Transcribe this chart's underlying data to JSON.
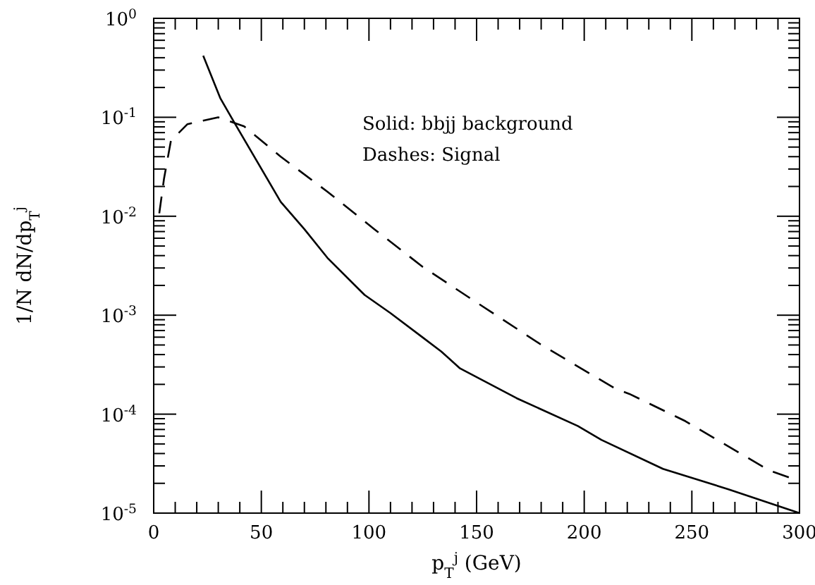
{
  "chart_data": {
    "type": "line",
    "xlabel": "p$_{T}$$^{j}$ (GeV)",
    "ylabel": "1/N dN/dp$_{T}$$^{j}$",
    "log": "y",
    "marker": "none",
    "xlim": [
      0,
      300
    ],
    "ylim": [
      1e-05,
      1
    ],
    "xticks": [
      0,
      {
        "value": 10,
        "label": null
      },
      {
        "value": 20,
        "label": null
      },
      {
        "value": 30,
        "label": null
      },
      {
        "value": 40,
        "label": null
      },
      50,
      {
        "value": 60,
        "label": null
      },
      {
        "value": 70,
        "label": null
      },
      {
        "value": 80,
        "label": null
      },
      {
        "value": 90,
        "label": null
      },
      100,
      {
        "value": 110,
        "label": null
      },
      {
        "value": 120,
        "label": null
      },
      {
        "value": 130,
        "label": null
      },
      {
        "value": 140,
        "label": null
      },
      150,
      {
        "value": 160,
        "label": null
      },
      {
        "value": 170,
        "label": null
      },
      {
        "value": 180,
        "label": null
      },
      {
        "value": 190,
        "label": null
      },
      200,
      {
        "value": 210,
        "label": null
      },
      {
        "value": 220,
        "label": null
      },
      {
        "value": 230,
        "label": null
      },
      {
        "value": 240,
        "label": null
      },
      250,
      {
        "value": 260,
        "label": null
      },
      {
        "value": 270,
        "label": null
      },
      {
        "value": 280,
        "label": null
      },
      {
        "value": 290,
        "label": null
      },
      300
    ],
    "yticks": [
      {
        "value": 1e-05,
        "label": "10$^{-5}$"
      },
      {
        "value": 0.0001,
        "label": "10$^{-4}$"
      },
      {
        "value": 0.001,
        "label": "10$^{-3}$"
      },
      {
        "value": 0.01,
        "label": "10$^{-2}$"
      },
      {
        "value": 0.1,
        "label": "10$^{-1}$"
      },
      {
        "value": 1,
        "label": "10$^{0}$"
      }
    ],
    "annotations": [
      "Solid: bbjj background",
      "Dashes: Signal"
    ],
    "series": [
      {
        "color": "#000000",
        "line_style": "solid",
        "x": [
          23,
          31,
          37.5,
          59,
          70,
          80.7,
          98,
          110,
          124.8,
          133.6,
          142.3,
          168.6,
          197,
          208,
          236.6,
          267,
          300
        ],
        "values": [
          0.42,
          0.155,
          0.088,
          0.014,
          0.0074,
          0.0038,
          0.0016,
          0.00105,
          0.0006,
          0.00043,
          0.00029,
          0.000145,
          7.6e-05,
          5.5e-05,
          2.8e-05,
          1.74e-05,
          1e-05
        ]
      },
      {
        "color": "#000000",
        "line_style": "dashed",
        "x": [
          2.6,
          4.8,
          8,
          15.6,
          29.9,
          42,
          59,
          80.7,
          102.5,
          124.8,
          146.7,
          179.6,
          214.6,
          221,
          247,
          286,
          300
        ],
        "values": [
          0.0107,
          0.024,
          0.058,
          0.085,
          0.1,
          0.081,
          0.04,
          0.0177,
          0.0074,
          0.0031,
          0.0015,
          0.00051,
          0.00018,
          0.00016,
          8.5e-05,
          2.7e-05,
          2.1e-05
        ]
      }
    ]
  }
}
